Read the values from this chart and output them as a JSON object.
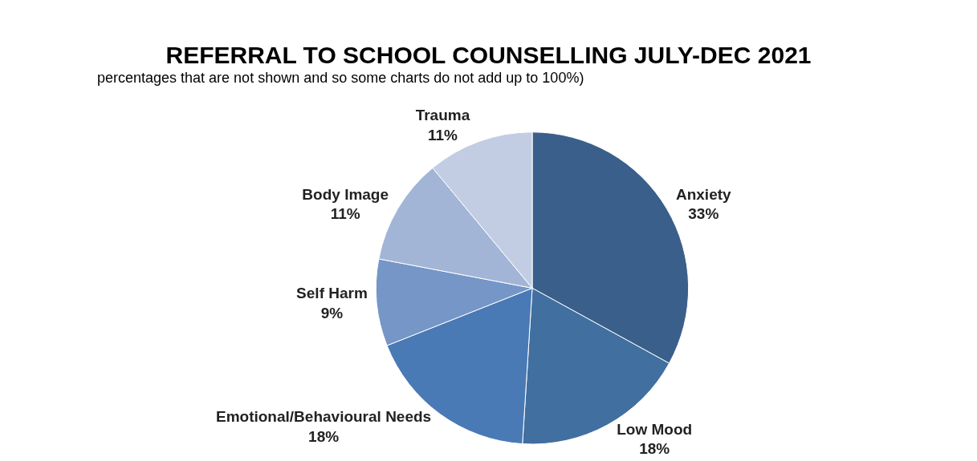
{
  "chart_data": {
    "type": "pie",
    "title": "REFERRAL TO SCHOOL COUNSELLING JULY-DEC 2021",
    "categories": [
      "Anxiety",
      "Low Mood",
      "Emotional/Behavioural Needs",
      "Self Harm",
      "Body Image",
      "Trauma"
    ],
    "values": [
      33,
      18,
      18,
      9,
      11,
      11
    ],
    "colors": [
      "#3a5f8a",
      "#416fa0",
      "#4a7ab5",
      "#7596c7",
      "#a2b5d6",
      "#c2cde3"
    ],
    "value_labels": [
      "33%",
      "18%",
      "18%",
      "9%",
      "11%",
      "11%"
    ],
    "legend": false,
    "annotations": [
      "percentages that are not shown and so some charts do not add up to 100%)"
    ]
  }
}
